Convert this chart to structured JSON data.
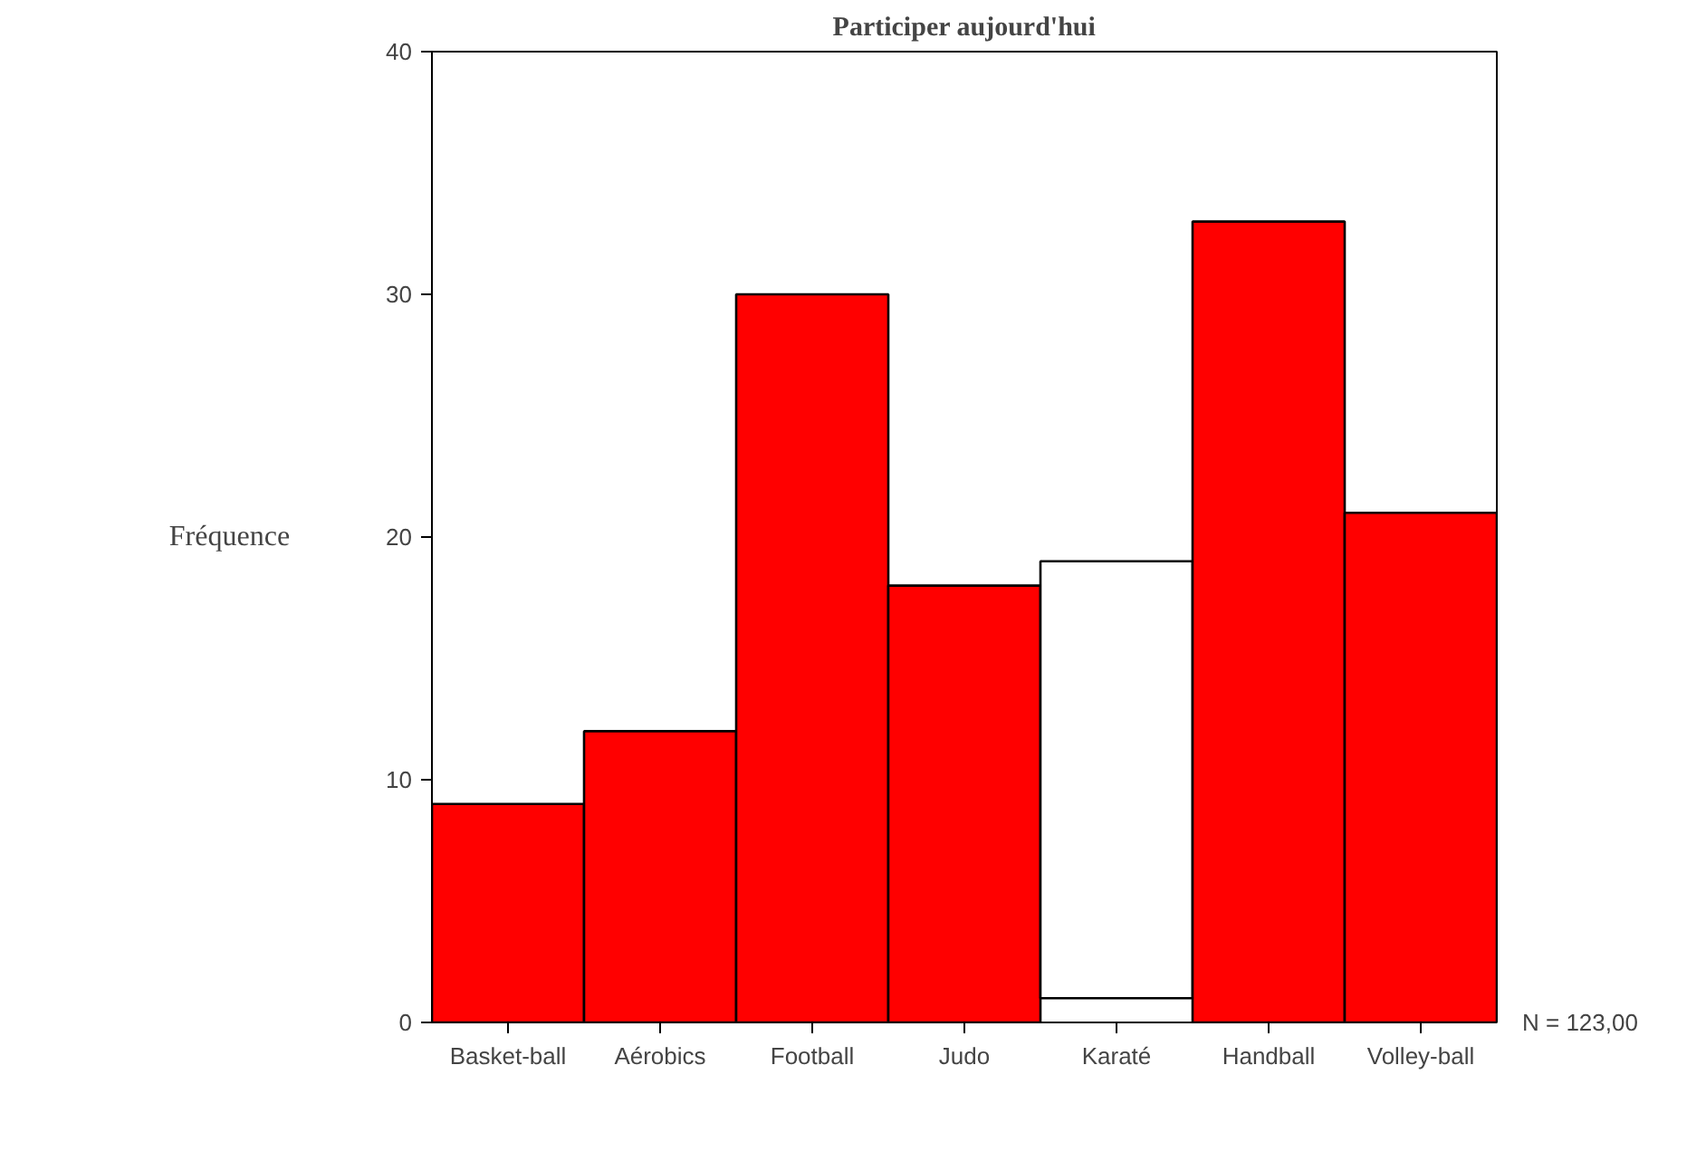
{
  "chart_data": {
    "type": "bar",
    "title": "Participer aujourd'hui",
    "ylabel": "Fréquence",
    "categories": [
      "Basket-ball",
      "Aérobics",
      "Football",
      "Judo",
      "Karaté",
      "Handball",
      "Volley-ball"
    ],
    "values": [
      9,
      12,
      30,
      18,
      18,
      33,
      21
    ],
    "base": [
      0,
      0,
      0,
      0,
      1,
      0,
      0
    ],
    "colors": [
      "#ff0000",
      "#ff0000",
      "#ff0000",
      "#ff0000",
      "#ffffff",
      "#ff0000",
      "#ff0000"
    ],
    "ylim": [
      0,
      40
    ],
    "yticks": [
      0,
      10,
      20,
      30,
      40
    ],
    "grid": false,
    "annotations": [
      "N = 123,00"
    ]
  }
}
